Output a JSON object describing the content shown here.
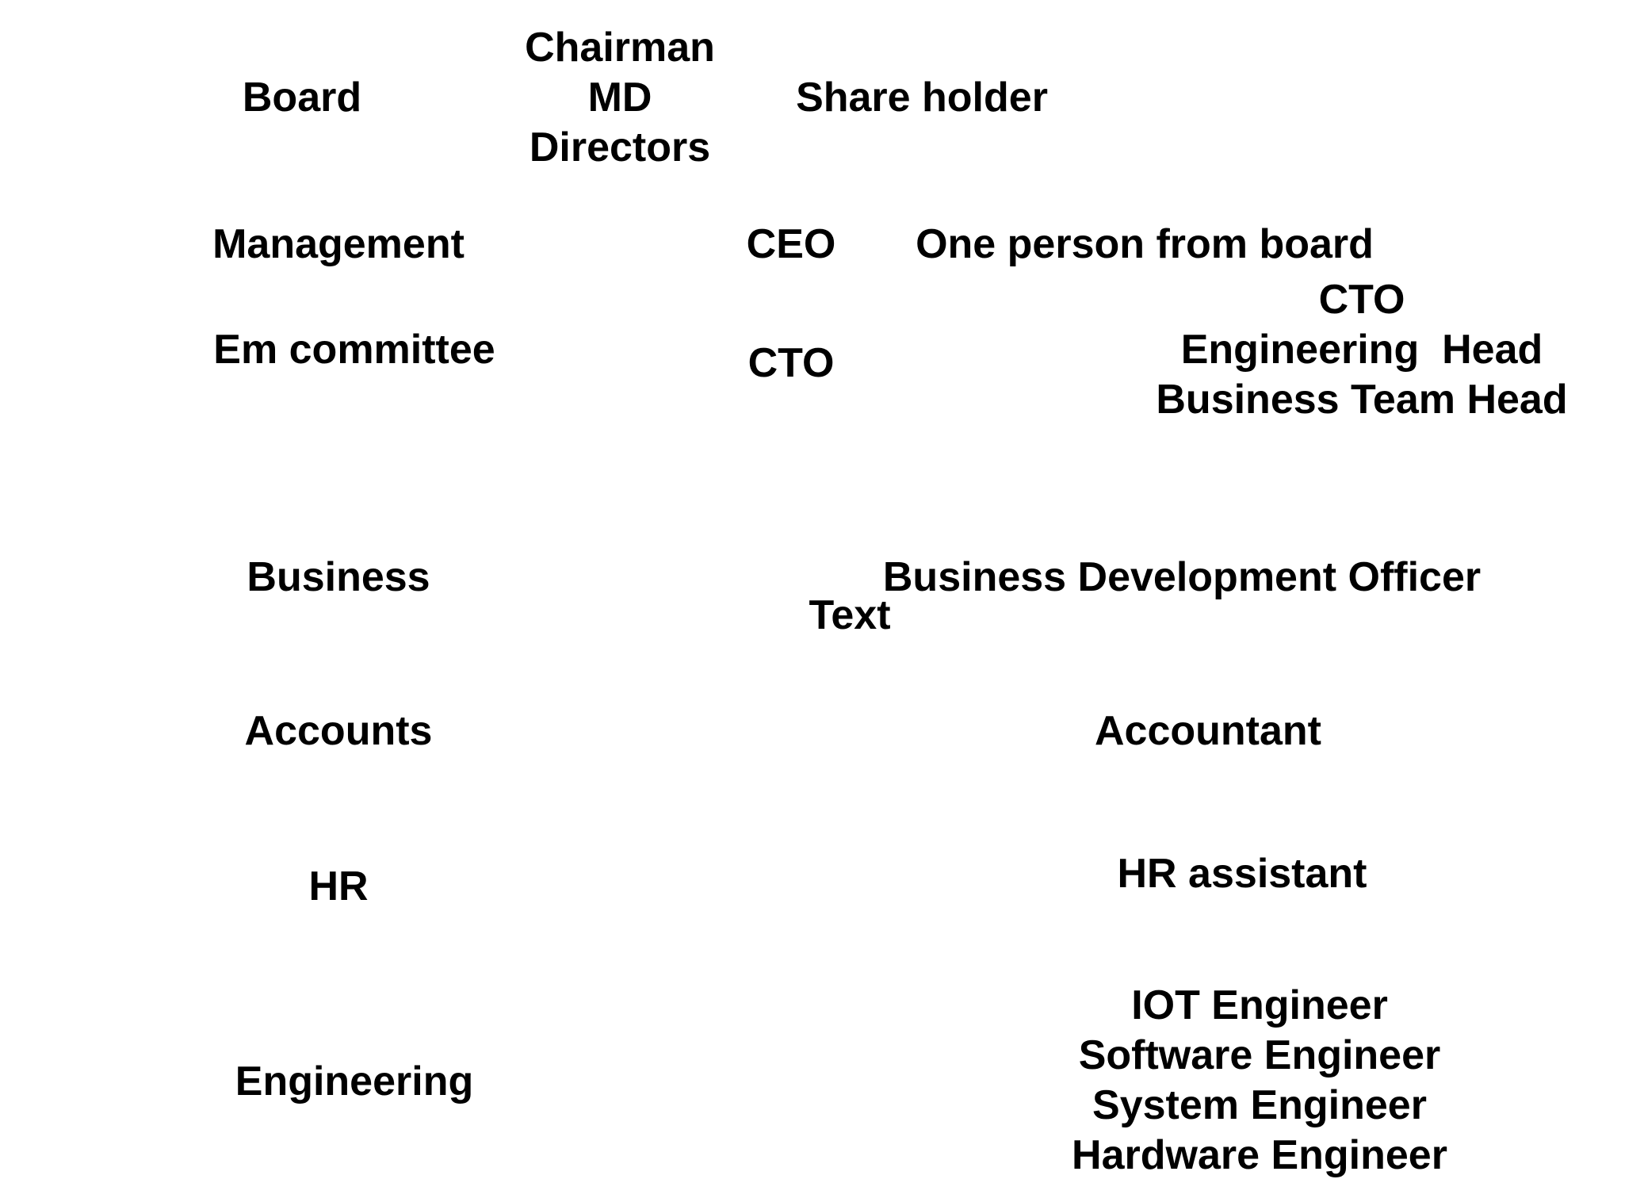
{
  "left_labels": {
    "board": "Board",
    "management": "Management",
    "em_committee": "Em committee",
    "business": "Business",
    "accounts": "Accounts",
    "hr": "HR",
    "engineering": "Engineering"
  },
  "board_members": [
    "Chairman",
    "MD",
    "Directors"
  ],
  "share_holder": "Share holder",
  "management_role": "CEO",
  "management_note": "One person from board",
  "em_committee_role": "CTO",
  "em_committee_members": [
    "CTO",
    "Engineering  Head",
    "Business Team Head"
  ],
  "business_role": "Business Development Officer",
  "stray_text": "Text",
  "accounts_role": "Accountant",
  "hr_role": "HR assistant",
  "engineering_roles": [
    "IOT Engineer",
    "Software Engineer",
    "System Engineer",
    "Hardware Engineer"
  ]
}
